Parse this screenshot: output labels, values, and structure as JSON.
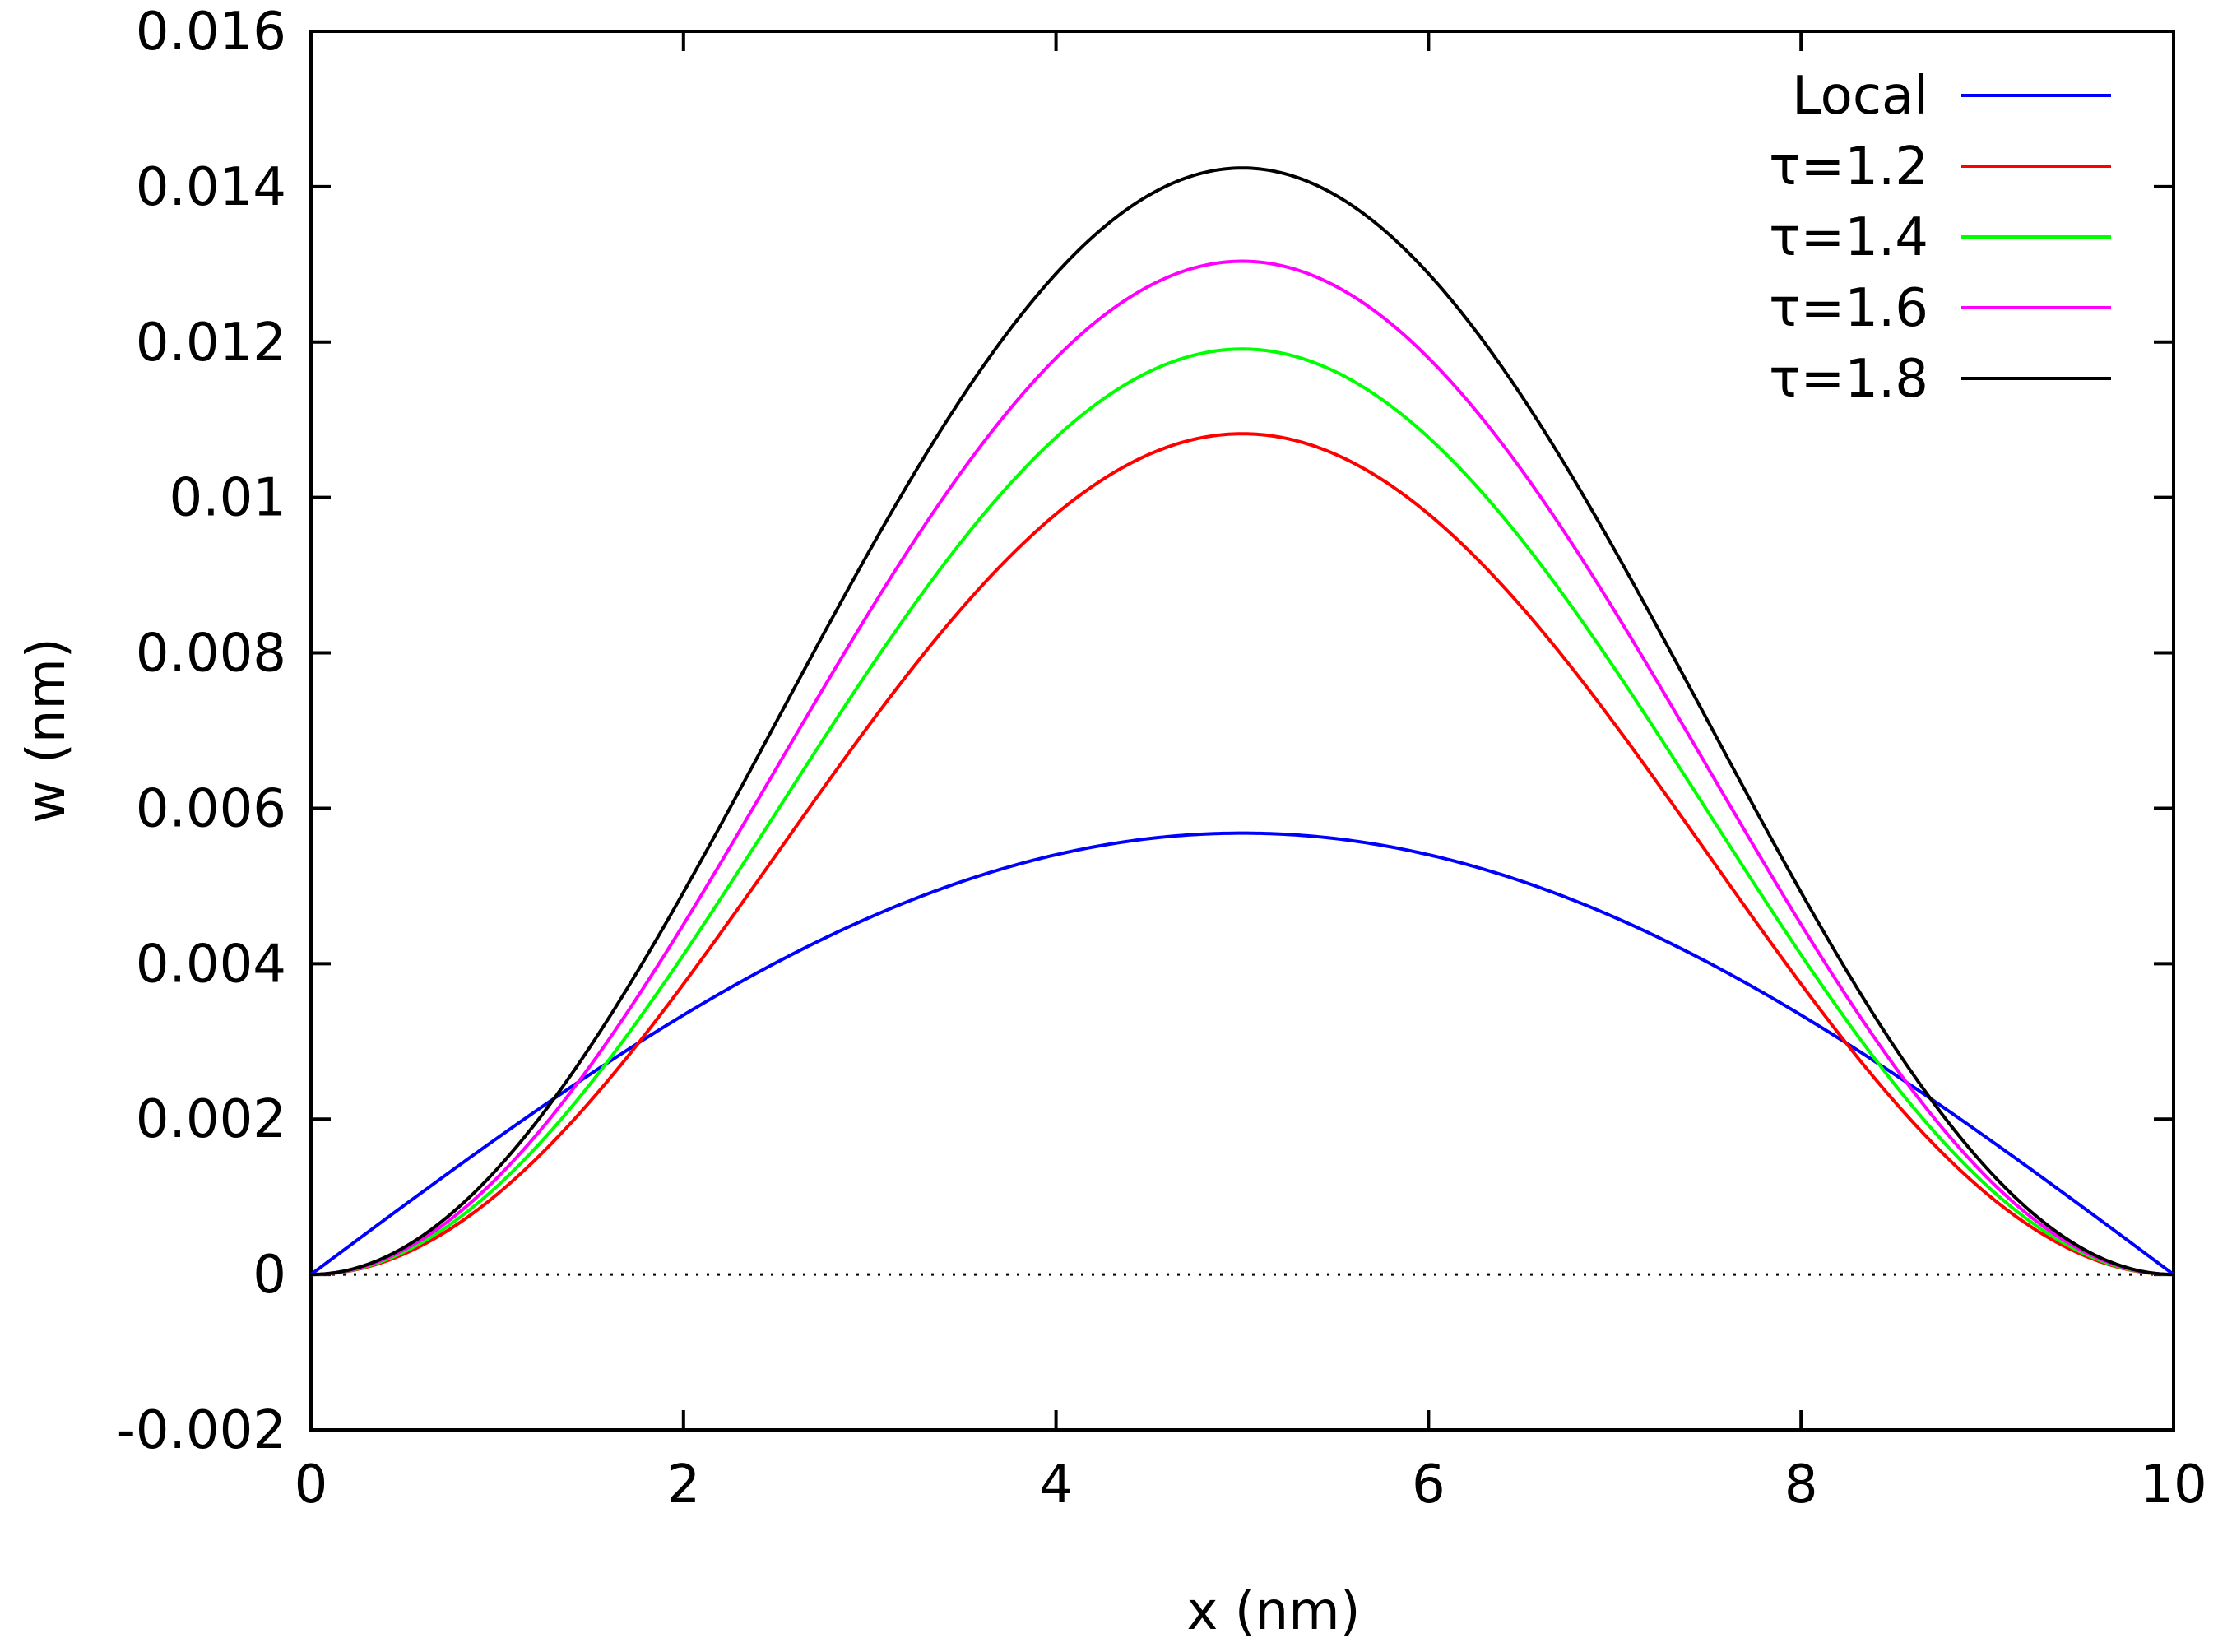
{
  "chart_data": {
    "type": "line",
    "title": "",
    "xlabel": "x (nm)",
    "ylabel": "w (nm)",
    "xlim": [
      0,
      10
    ],
    "ylim": [
      -0.002,
      0.016
    ],
    "xticks": [
      0,
      2,
      4,
      6,
      8,
      10
    ],
    "xtick_labels": [
      "0",
      "2",
      "4",
      "6",
      "8",
      "10"
    ],
    "yticks": [
      -0.002,
      0,
      0.002,
      0.004,
      0.006,
      0.008,
      0.01,
      0.012,
      0.014,
      0.016
    ],
    "ytick_labels": [
      "-0.002",
      "0",
      "0.002",
      "0.004",
      "0.006",
      "0.008",
      "0.01",
      "0.012",
      "0.014",
      "0.016"
    ],
    "grid": false,
    "zero_line": "dotted",
    "legend_position": "top-right",
    "series": [
      {
        "name": "Local",
        "color": "#0000ff",
        "shape": "sine",
        "peak_x": 5,
        "peak_y": 0.00568
      },
      {
        "name": "τ=1.2",
        "color": "#ff0000",
        "shape": "clamped",
        "peak_x": 5,
        "peak_y": 0.01082
      },
      {
        "name": "τ=1.4",
        "color": "#00ff00",
        "shape": "clamped",
        "peak_x": 5,
        "peak_y": 0.01191
      },
      {
        "name": "τ=1.6",
        "color": "#ff00ff",
        "shape": "clamped",
        "peak_x": 5,
        "peak_y": 0.01304
      },
      {
        "name": "τ=1.8",
        "color": "#000000",
        "shape": "clamped",
        "peak_x": 5,
        "peak_y": 0.01424
      }
    ]
  }
}
